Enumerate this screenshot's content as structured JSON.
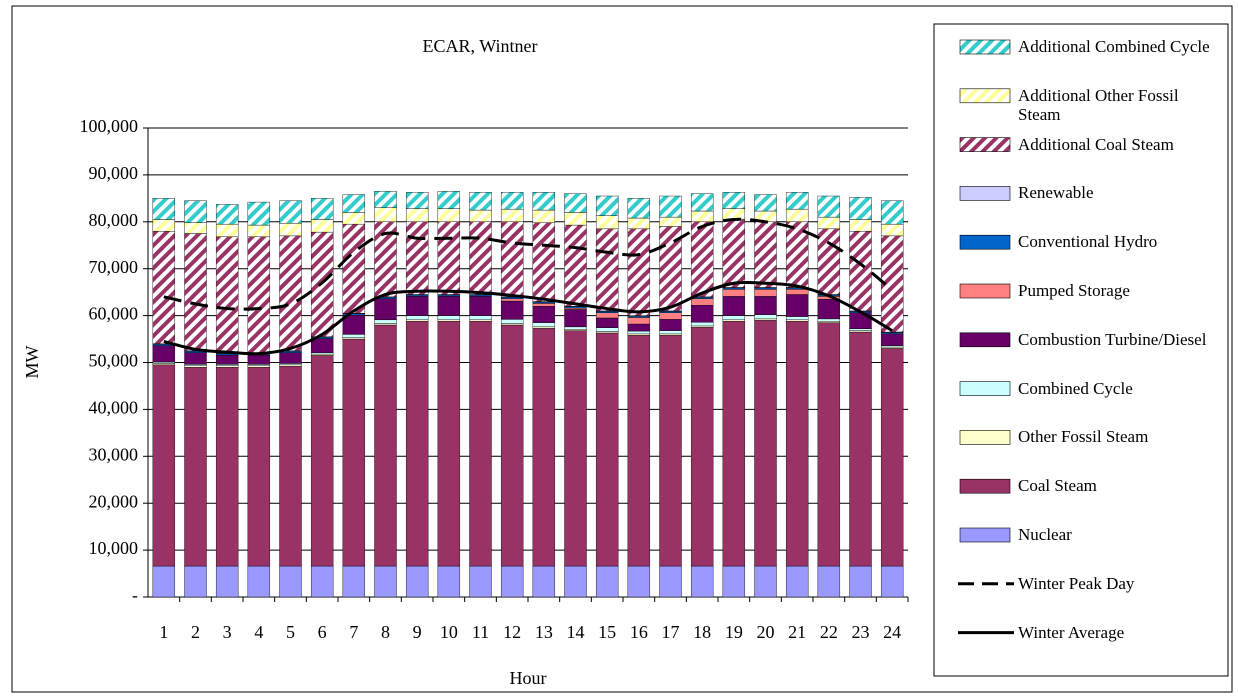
{
  "chart_data": {
    "type": "stacked-bar-line",
    "title": "ECAR, Wintner",
    "x_label": "Hour",
    "y_label": "MW",
    "categories": [
      "1",
      "2",
      "3",
      "4",
      "5",
      "6",
      "7",
      "8",
      "9",
      "10",
      "11",
      "12",
      "13",
      "14",
      "15",
      "16",
      "17",
      "18",
      "19",
      "20",
      "21",
      "22",
      "23",
      "24"
    ],
    "ylim": [
      0,
      100000
    ],
    "yticks": [
      {
        "value": 0,
        "label": "-"
      },
      {
        "value": 10000,
        "label": "10,000"
      },
      {
        "value": 20000,
        "label": "20,000"
      },
      {
        "value": 30000,
        "label": "30,000"
      },
      {
        "value": 40000,
        "label": "40,000"
      },
      {
        "value": 50000,
        "label": "50,000"
      },
      {
        "value": 60000,
        "label": "60,000"
      },
      {
        "value": 70000,
        "label": "70,000"
      },
      {
        "value": 80000,
        "label": "80,000"
      },
      {
        "value": 90000,
        "label": "90,000"
      },
      {
        "value": 100000,
        "label": "100,000"
      }
    ],
    "grid": true,
    "legend": "right",
    "series": [
      {
        "name": "Nuclear",
        "kind": "bar",
        "color": "#9999ff",
        "values": [
          6600,
          6600,
          6600,
          6600,
          6600,
          6600,
          6600,
          6600,
          6600,
          6600,
          6600,
          6600,
          6600,
          6600,
          6600,
          6600,
          6600,
          6600,
          6600,
          6600,
          6600,
          6600,
          6600,
          6600
        ]
      },
      {
        "name": "Coal Steam",
        "kind": "bar",
        "color": "#993366",
        "values": [
          42900,
          42400,
          42400,
          42400,
          42600,
          44900,
          48400,
          51400,
          52200,
          52200,
          52200,
          51400,
          50700,
          50200,
          49700,
          49200,
          49200,
          50900,
          52200,
          52400,
          52200,
          51900,
          49900,
          46400
        ]
      },
      {
        "name": "Other Fossil Steam",
        "kind": "bar",
        "color": "#ffffcc",
        "values": [
          300,
          300,
          300,
          300,
          300,
          300,
          300,
          300,
          300,
          300,
          300,
          300,
          300,
          300,
          300,
          300,
          300,
          300,
          300,
          300,
          300,
          300,
          300,
          300
        ]
      },
      {
        "name": "Combined Cycle",
        "kind": "bar",
        "color": "#ccffff",
        "values": [
          300,
          300,
          300,
          300,
          300,
          300,
          700,
          800,
          900,
          900,
          900,
          900,
          900,
          500,
          800,
          600,
          700,
          800,
          900,
          900,
          700,
          500,
          400,
          300
        ]
      },
      {
        "name": "Combustion Turbine/Diesel",
        "kind": "bar",
        "color": "#660066",
        "values": [
          3500,
          2500,
          2000,
          2000,
          2300,
          3000,
          4100,
          4500,
          4100,
          4100,
          4100,
          3900,
          3500,
          3700,
          2100,
          1500,
          2400,
          3600,
          4100,
          3900,
          4700,
          4200,
          3400,
          2500
        ]
      },
      {
        "name": "Pumped Storage",
        "kind": "bar",
        "color": "#ff8080",
        "values": [
          0,
          0,
          0,
          0,
          0,
          0,
          0,
          0,
          0,
          0,
          0,
          500,
          600,
          300,
          1100,
          1400,
          1400,
          1400,
          1500,
          1500,
          1100,
          600,
          0,
          0
        ]
      },
      {
        "name": "Conventional Hydro",
        "kind": "bar",
        "color": "#0066cc",
        "values": [
          300,
          300,
          300,
          300,
          300,
          300,
          300,
          300,
          300,
          300,
          300,
          300,
          300,
          300,
          300,
          300,
          300,
          300,
          300,
          300,
          300,
          300,
          300,
          300
        ]
      },
      {
        "name": "Renewable",
        "kind": "bar",
        "color": "#ccccff",
        "values": [
          100,
          100,
          100,
          100,
          100,
          100,
          100,
          100,
          100,
          100,
          100,
          100,
          100,
          100,
          100,
          100,
          100,
          100,
          100,
          100,
          100,
          100,
          100,
          100
        ]
      },
      {
        "name": "Additional Coal Steam",
        "kind": "bar",
        "color": "#993366",
        "pattern": "hatch",
        "values": [
          24000,
          25000,
          24800,
          24800,
          24500,
          22300,
          19000,
          16000,
          15500,
          15500,
          15500,
          16000,
          16800,
          17300,
          17500,
          18500,
          18000,
          16000,
          14500,
          14000,
          14000,
          14000,
          17000,
          20500
        ]
      },
      {
        "name": "Additional Other Fossil Steam",
        "kind": "bar",
        "color": "#ffff99",
        "pattern": "hatch",
        "values": [
          2500,
          2300,
          2700,
          2500,
          2700,
          2700,
          2500,
          3000,
          2800,
          2800,
          2500,
          2700,
          2700,
          2700,
          2800,
          2300,
          2000,
          2300,
          2300,
          2300,
          2700,
          2500,
          2500,
          2500
        ]
      },
      {
        "name": "Additional Combined Cycle",
        "kind": "bar",
        "color": "#33cccc",
        "pattern": "hatch",
        "values": [
          4500,
          4700,
          4200,
          4900,
          4800,
          4500,
          3800,
          3500,
          3500,
          3700,
          3800,
          3600,
          3800,
          4000,
          4200,
          4200,
          4500,
          3700,
          3500,
          3500,
          3600,
          4500,
          4700,
          5000
        ]
      },
      {
        "name": "Winter Peak Day",
        "kind": "line",
        "dash": true,
        "color": "#000000",
        "values": [
          64000,
          62500,
          61500,
          61500,
          62500,
          67000,
          73500,
          77500,
          76500,
          76500,
          76500,
          75500,
          75000,
          74500,
          73500,
          73000,
          75500,
          79000,
          80500,
          80000,
          78500,
          75500,
          71000,
          65500
        ]
      },
      {
        "name": "Winter Average",
        "kind": "line",
        "dash": false,
        "color": "#000000",
        "values": [
          54500,
          52800,
          52200,
          51900,
          53000,
          56000,
          61000,
          64500,
          65200,
          65200,
          64900,
          64300,
          63500,
          62500,
          61500,
          60800,
          61800,
          64800,
          66900,
          66900,
          66300,
          64200,
          60800,
          56800
        ]
      }
    ]
  }
}
